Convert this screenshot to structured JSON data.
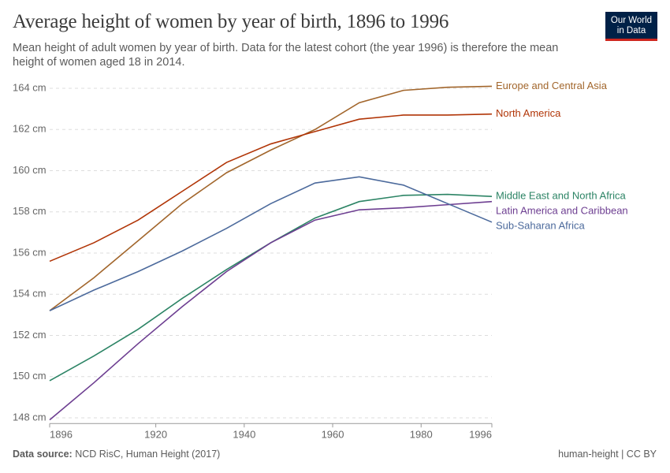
{
  "chart_data": {
    "type": "line",
    "title": "Average height of women by year of birth, 1896 to 1996",
    "subtitle": "Mean height of adult women by year of birth. Data for the latest cohort (the year 1996) is therefore the mean height of women aged 18 in 2014.",
    "logo": [
      "Our World",
      "in Data"
    ],
    "source_label": "Data source:",
    "source": "NCD RisC, Human Height (2017)",
    "footer_right": "human-height | CC BY",
    "x": [
      1896,
      1906,
      1916,
      1926,
      1936,
      1946,
      1956,
      1966,
      1976,
      1986,
      1996
    ],
    "xlim": [
      1896,
      1996
    ],
    "xticks": [
      1896,
      1920,
      1940,
      1960,
      1980,
      1996
    ],
    "ylim": [
      147.8,
      164.2
    ],
    "yticks": [
      {
        "value": 148,
        "label": "148 cm"
      },
      {
        "value": 150,
        "label": "150 cm"
      },
      {
        "value": 152,
        "label": "152 cm"
      },
      {
        "value": 154,
        "label": "154 cm"
      },
      {
        "value": 156,
        "label": "156 cm"
      },
      {
        "value": 158,
        "label": "158 cm"
      },
      {
        "value": 160,
        "label": "160 cm"
      },
      {
        "value": 162,
        "label": "162 cm"
      },
      {
        "value": 164,
        "label": "164 cm"
      }
    ],
    "grid": true,
    "series": [
      {
        "name": "Europe and Central Asia",
        "color": "#a2662c",
        "values": [
          153.2,
          154.8,
          156.6,
          158.4,
          159.9,
          161.0,
          162.0,
          163.3,
          163.9,
          164.05,
          164.1
        ]
      },
      {
        "name": "North America",
        "color": "#b13507",
        "values": [
          155.6,
          156.5,
          157.6,
          159.0,
          160.4,
          161.3,
          161.9,
          162.5,
          162.7,
          162.7,
          162.75
        ]
      },
      {
        "name": "Middle East and North Africa",
        "color": "#2c8465",
        "values": [
          149.8,
          151.0,
          152.3,
          153.8,
          155.2,
          156.5,
          157.7,
          158.5,
          158.8,
          158.85,
          158.75
        ]
      },
      {
        "name": "Latin America and Caribbean",
        "color": "#6d3e91",
        "values": [
          147.9,
          149.7,
          151.6,
          153.4,
          155.1,
          156.5,
          157.6,
          158.1,
          158.2,
          158.35,
          158.5
        ]
      },
      {
        "name": "Sub-Saharan Africa",
        "color": "#4c6a9c",
        "values": [
          153.2,
          154.2,
          155.1,
          156.1,
          157.2,
          158.4,
          159.4,
          159.7,
          159.3,
          158.4,
          157.5
        ]
      }
    ]
  }
}
